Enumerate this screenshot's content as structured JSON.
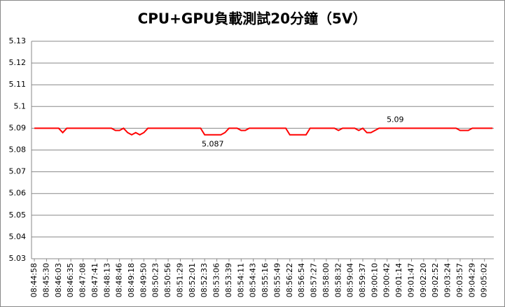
{
  "chart_data": {
    "type": "line",
    "title": "CPU+GPU負載測試20分鐘（5V）",
    "categories": [
      "08:44:58",
      null,
      null,
      "08:45:30",
      null,
      null,
      "08:46:03",
      null,
      null,
      "08:46:35",
      null,
      null,
      "08:47:08",
      null,
      null,
      "08:47:41",
      null,
      null,
      "08:48:13",
      null,
      null,
      "08:48:46",
      null,
      null,
      "08:49:18",
      null,
      null,
      "08:49:50",
      null,
      null,
      "08:50:23",
      null,
      null,
      "08:50:56",
      null,
      null,
      "08:51:29",
      null,
      null,
      "08:52:01",
      null,
      null,
      "08:52:33",
      null,
      null,
      "08:53:06",
      null,
      null,
      "08:53:39",
      null,
      null,
      "08:54:11",
      null,
      null,
      "08:54:43",
      null,
      null,
      "08:55:16",
      null,
      null,
      "08:55:49",
      null,
      null,
      "08:56:22",
      null,
      null,
      "08:56:54",
      null,
      null,
      "08:57:27",
      null,
      null,
      "08:58:00",
      null,
      null,
      "08:58:32",
      null,
      null,
      "08:59:04",
      null,
      null,
      "08:59:37",
      null,
      null,
      "09:00:10",
      null,
      null,
      "09:00:42",
      null,
      null,
      "09:01:14",
      null,
      null,
      "09:01:47",
      null,
      null,
      "09:02:20",
      null,
      null,
      "09:02:52",
      null,
      null,
      "09:03:24",
      null,
      null,
      "09:03:57",
      null,
      null,
      "09:04:29",
      null,
      null,
      "09:05:02",
      null,
      null
    ],
    "values": [
      5.09,
      5.09,
      5.09,
      5.09,
      5.09,
      5.09,
      5.09,
      5.088,
      5.09,
      5.09,
      5.09,
      5.09,
      5.09,
      5.09,
      5.09,
      5.09,
      5.09,
      5.09,
      5.09,
      5.09,
      5.089,
      5.089,
      5.09,
      5.088,
      5.087,
      5.088,
      5.087,
      5.088,
      5.09,
      5.09,
      5.09,
      5.09,
      5.09,
      5.09,
      5.09,
      5.09,
      5.09,
      5.09,
      5.09,
      5.09,
      5.09,
      5.09,
      5.087,
      5.087,
      5.087,
      5.087,
      5.087,
      5.088,
      5.09,
      5.09,
      5.09,
      5.089,
      5.089,
      5.09,
      5.09,
      5.09,
      5.09,
      5.09,
      5.09,
      5.09,
      5.09,
      5.09,
      5.09,
      5.087,
      5.087,
      5.087,
      5.087,
      5.087,
      5.09,
      5.09,
      5.09,
      5.09,
      5.09,
      5.09,
      5.09,
      5.089,
      5.09,
      5.09,
      5.09,
      5.09,
      5.089,
      5.09,
      5.088,
      5.088,
      5.089,
      5.09,
      5.09,
      5.09,
      5.09,
      5.09,
      5.09,
      5.09,
      5.09,
      5.09,
      5.09,
      5.09,
      5.09,
      5.09,
      5.09,
      5.09,
      5.09,
      5.09,
      5.09,
      5.09,
      5.09,
      5.089,
      5.089,
      5.089,
      5.09,
      5.09,
      5.09,
      5.09,
      5.09,
      5.09
    ],
    "value_labels": [
      null,
      null,
      null,
      null,
      null,
      null,
      null,
      null,
      null,
      null,
      null,
      null,
      null,
      null,
      null,
      null,
      null,
      null,
      null,
      null,
      null,
      null,
      null,
      null,
      null,
      null,
      null,
      null,
      null,
      null,
      null,
      null,
      null,
      null,
      null,
      null,
      null,
      null,
      null,
      null,
      null,
      null,
      null,
      null,
      "5.087",
      null,
      null,
      null,
      null,
      null,
      null,
      null,
      null,
      null,
      null,
      null,
      null,
      null,
      null,
      null,
      null,
      null,
      null,
      null,
      null,
      null,
      null,
      null,
      null,
      null,
      null,
      null,
      null,
      null,
      null,
      null,
      null,
      null,
      null,
      null,
      null,
      null,
      null,
      null,
      null,
      null,
      null,
      null,
      null,
      "5.09",
      null,
      null,
      null,
      null,
      null,
      null,
      null,
      null,
      null,
      null,
      null,
      null,
      null,
      null,
      null,
      null,
      null,
      null,
      null,
      null,
      null,
      null,
      null,
      null
    ],
    "color": "#ff0000",
    "ylim": [
      5.03,
      5.13
    ],
    "yticks": [
      5.03,
      5.04,
      5.05,
      5.06,
      5.07,
      5.08,
      5.09,
      5.1,
      5.11,
      5.12,
      5.13
    ],
    "grid": true
  }
}
